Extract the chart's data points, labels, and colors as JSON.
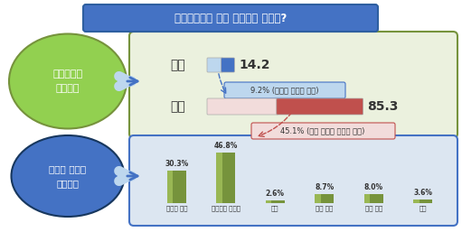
{
  "title": "대체공휴일에 대한 서민계층 인식은?",
  "title_bg": "#4472C4",
  "title_text_color": "#FFFFFF",
  "outer_bg": "#FFFFFF",
  "outer_border": "#4472C4",
  "section1_label": "대체공휴일\n찬반의견",
  "section1_bg": "#92D050",
  "section1_border": "#76933C",
  "section1_text_color": "#FFFFFF",
  "section2_label": "공휴일 증가시\n활용방안",
  "section2_bg": "#4472C4",
  "section2_border": "#17375E",
  "section2_text_color": "#FFFFFF",
  "top_panel_bg": "#EBF1DE",
  "top_panel_border": "#76933C",
  "bottom_panel_bg": "#DCE6F1",
  "bottom_panel_border": "#4472C4",
  "favor_label": "찬성",
  "favor_value": "14.2",
  "favor_bar_color1": "#BDD7EE",
  "favor_bar_color2": "#4472C4",
  "favor_note": "9.2% (여가가 늘어나 좋다)",
  "favor_note_bg": "#BDD7EE",
  "favor_note_border": "#4472C4",
  "oppose_label": "반대",
  "oppose_value": "85.3",
  "oppose_bar_color1": "#F2DCDB",
  "oppose_bar_color2": "#C0504D",
  "oppose_note": "45.1% (서민 경제의 어려움 가중)",
  "oppose_note_bg": "#F2DCDB",
  "oppose_note_border": "#C0504D",
  "bar_categories": [
    "집에서 쉰다",
    "평소대로 일한다",
    "여행",
    "레저 활동",
    "자기 개발",
    "기타"
  ],
  "bar_values": [
    30.3,
    46.8,
    2.6,
    8.7,
    8.0,
    3.6
  ],
  "bar_color_top": "#A9C75F",
  "bar_color_mid": "#76933C",
  "bar_color_bot": "#4F6228",
  "arrow_color": "#4472C4",
  "arrow_color2": "#C0504D"
}
